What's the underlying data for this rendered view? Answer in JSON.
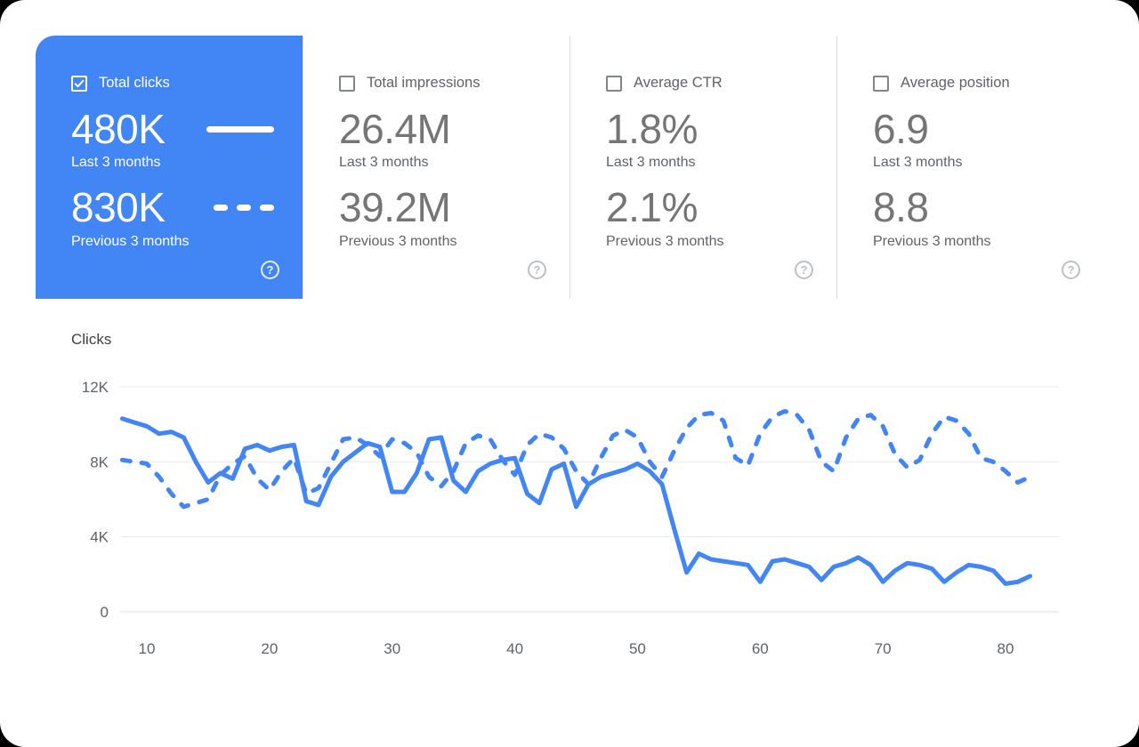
{
  "icons": {
    "help": "?"
  },
  "colors": {
    "accent_blue": "#4285f4",
    "card_divider": "#dadce0",
    "gridline": "#e8eaed",
    "axis_text": "#5f6368"
  },
  "cards": [
    {
      "label": "Total clicks",
      "checked": true,
      "selected": true,
      "primary_value": "480K",
      "primary_caption": "Last 3 months",
      "secondary_value": "830K",
      "secondary_caption": "Previous 3 months"
    },
    {
      "label": "Total impressions",
      "checked": false,
      "selected": false,
      "primary_value": "26.4M",
      "primary_caption": "Last 3 months",
      "secondary_value": "39.2M",
      "secondary_caption": "Previous 3 months"
    },
    {
      "label": "Average CTR",
      "checked": false,
      "selected": false,
      "primary_value": "1.8%",
      "primary_caption": "Last 3 months",
      "secondary_value": "2.1%",
      "secondary_caption": "Previous 3 months"
    },
    {
      "label": "Average position",
      "checked": false,
      "selected": false,
      "primary_value": "6.9",
      "primary_caption": "Last 3 months",
      "secondary_value": "8.8",
      "secondary_caption": "Previous 3 months"
    }
  ],
  "chart_data": {
    "type": "line",
    "title": "Clicks",
    "xlabel": "",
    "ylabel": "Clicks",
    "ylim": [
      0,
      12000
    ],
    "grid": true,
    "x_start": 8,
    "x_step": 1,
    "x_ticks": [
      10,
      20,
      30,
      40,
      50,
      60,
      70,
      80
    ],
    "y_ticks": [
      {
        "value": 0,
        "label": "0"
      },
      {
        "value": 4000,
        "label": "4K"
      },
      {
        "value": 8000,
        "label": "8K"
      },
      {
        "value": 12000,
        "label": "12K"
      }
    ],
    "series": [
      {
        "name": "Previous 3 months",
        "style": "dashed",
        "color": "#4285f4",
        "values": [
          8100,
          8000,
          7900,
          7200,
          6300,
          5600,
          5800,
          6000,
          7300,
          7900,
          8300,
          7100,
          6500,
          7500,
          8200,
          6300,
          6600,
          7900,
          9200,
          9300,
          8900,
          8300,
          9200,
          9000,
          8500,
          7200,
          6700,
          7500,
          9000,
          9400,
          9200,
          8100,
          7300,
          8900,
          9500,
          9300,
          8700,
          7500,
          6800,
          8200,
          9400,
          9700,
          9300,
          8000,
          7200,
          8600,
          9800,
          10500,
          10600,
          10200,
          8200,
          7800,
          9500,
          10400,
          10700,
          10500,
          9700,
          8000,
          7500,
          9300,
          10300,
          10500,
          9900,
          8400,
          7700,
          8100,
          9500,
          10400,
          10200,
          9500,
          8200,
          8000,
          7500,
          6900,
          7200
        ]
      },
      {
        "name": "Last 3 months",
        "style": "solid",
        "color": "#4285f4",
        "values": [
          10300,
          10100,
          9900,
          9500,
          9600,
          9300,
          8000,
          6900,
          7400,
          7100,
          8700,
          8900,
          8600,
          8800,
          8900,
          5900,
          5700,
          7200,
          8000,
          8500,
          9000,
          8800,
          6400,
          6400,
          7400,
          9200,
          9300,
          7000,
          6400,
          7500,
          7900,
          8100,
          8200,
          6300,
          5800,
          7600,
          7900,
          5600,
          6800,
          7200,
          7400,
          7600,
          7900,
          7500,
          6800,
          4400,
          2100,
          3100,
          2800,
          2700,
          2600,
          2500,
          1600,
          2700,
          2800,
          2600,
          2400,
          1700,
          2400,
          2600,
          2900,
          2500,
          1600,
          2200,
          2600,
          2500,
          2300,
          1600,
          2100,
          2500,
          2400,
          2200,
          1500,
          1600,
          1900
        ]
      }
    ]
  }
}
